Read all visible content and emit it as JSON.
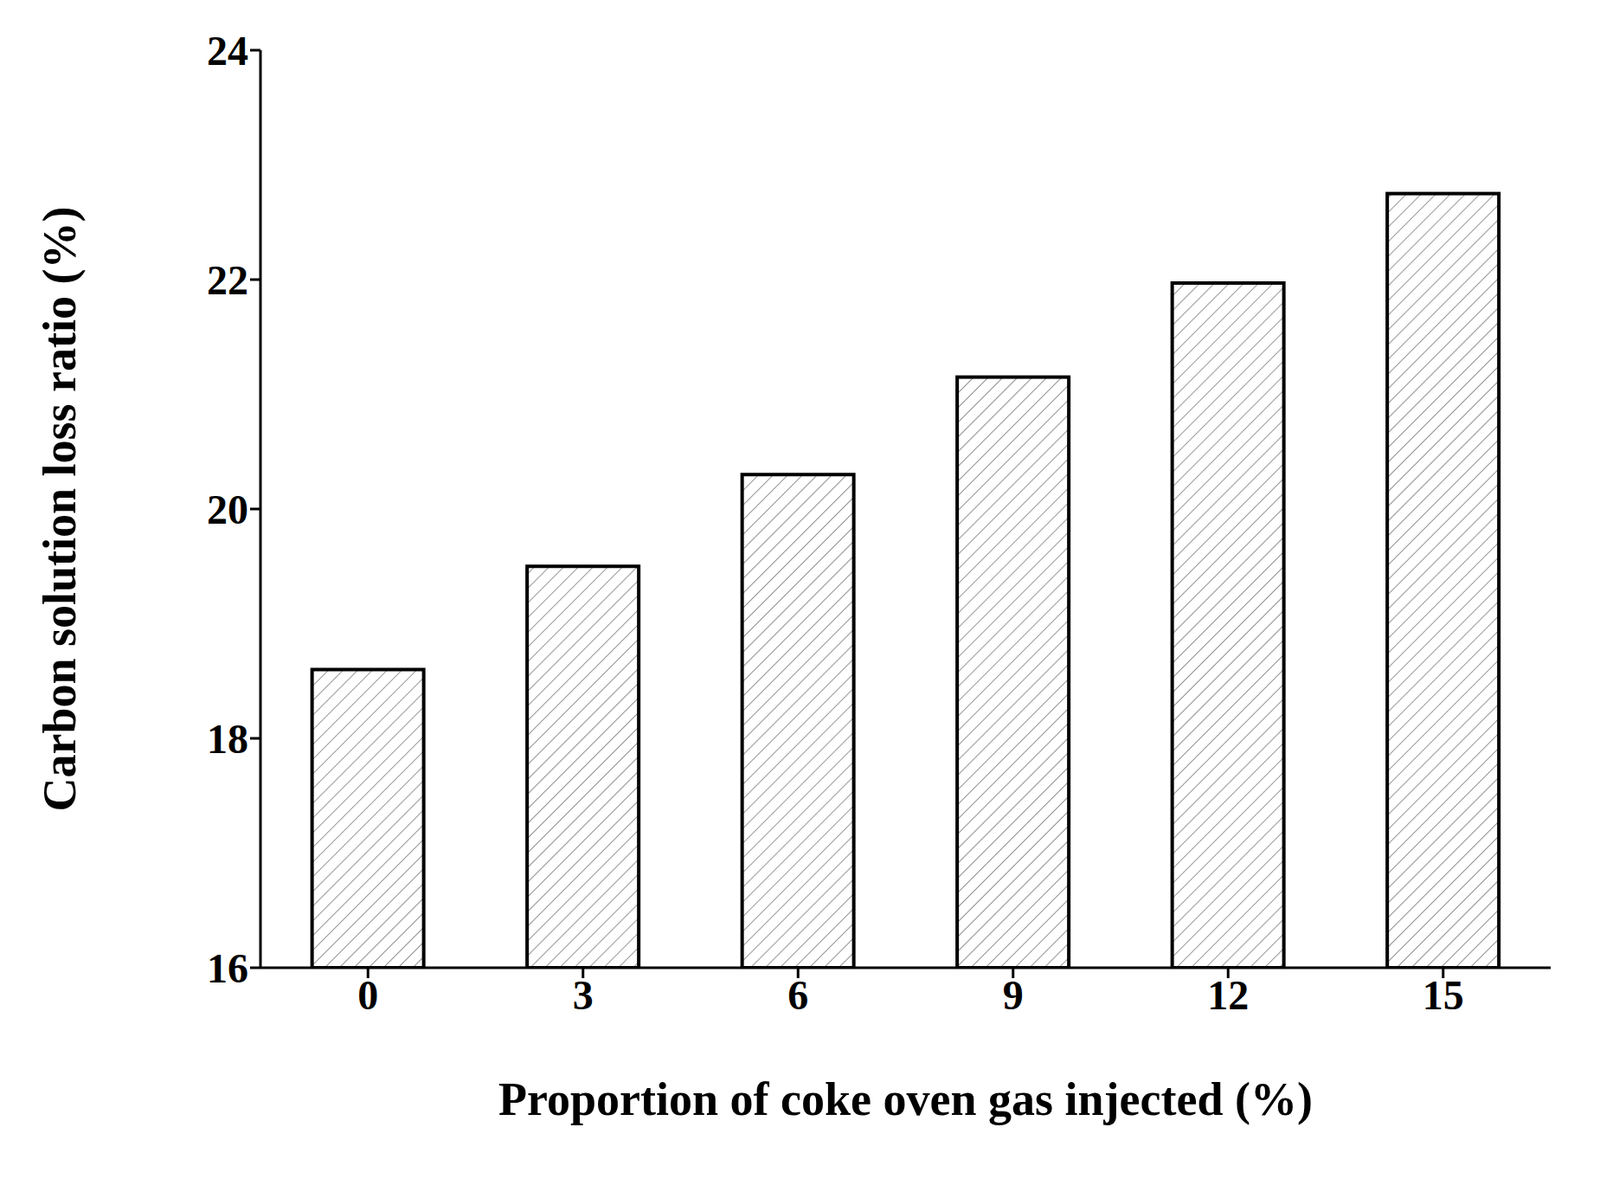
{
  "chart_data": {
    "type": "bar",
    "x_label": "Proportion of coke oven gas injected (%)",
    "y_label": "Carbon solution loss ratio (%)",
    "categories": [
      "0",
      "3",
      "6",
      "9",
      "12",
      "15"
    ],
    "values": [
      18.6,
      19.5,
      20.3,
      21.15,
      21.97,
      22.75
    ],
    "color": "#000000",
    "ylim": [
      16,
      24
    ],
    "yticks": [
      16,
      18,
      20,
      22,
      24
    ],
    "grid": false
  }
}
